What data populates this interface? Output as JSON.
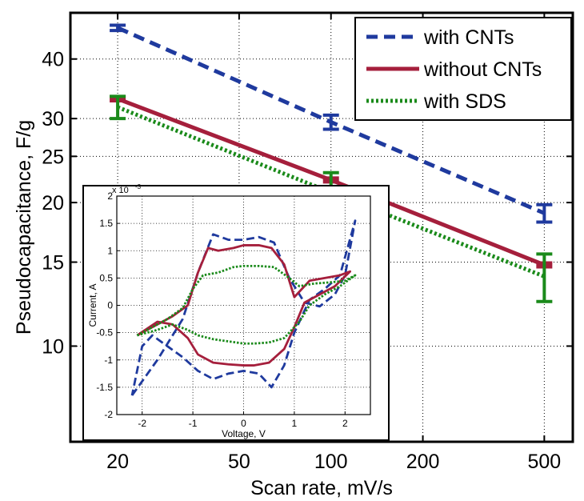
{
  "chart_data": [
    {
      "type": "line",
      "xlabel": "Scan rate, mV/s",
      "ylabel": "Pseudocapacitance, F/g",
      "xscale": "log",
      "yscale": "log",
      "xlim": [
        14,
        620
      ],
      "ylim": [
        6.3,
        50
      ],
      "xticks": [
        20,
        50,
        100,
        200,
        500
      ],
      "yticks": [
        10,
        15,
        20,
        25,
        30,
        40
      ],
      "grid": true,
      "legend_position": "top-right",
      "x": [
        20,
        100,
        500
      ],
      "series": [
        {
          "name": "with CNTs",
          "values": [
            46.5,
            29.5,
            19.0
          ],
          "err": [
            0.6,
            1.0,
            0.8
          ],
          "color": "#1f3a9e",
          "dash": "dashed"
        },
        {
          "name": "without CNTs",
          "values": [
            33.0,
            22.3,
            14.8
          ],
          "err": [
            0,
            0,
            0
          ],
          "color": "#a51f3c",
          "dash": "solid"
        },
        {
          "name": "with SDS",
          "values": [
            31.7,
            21.0,
            14.0
          ],
          "err": [
            1.7,
            2.1,
            1.6
          ],
          "color": "#1a8a1a",
          "dash": "dotted"
        }
      ]
    },
    {
      "type": "line",
      "inset": true,
      "xlabel": "Voltage, V",
      "ylabel": "Current, A",
      "y_multiplier": "x 10",
      "y_exponent": "-3",
      "xlim": [
        -2.5,
        2.5
      ],
      "ylim": [
        -2,
        2
      ],
      "xticks": [
        -2,
        -1,
        0,
        1,
        2
      ],
      "yticks": [
        -2,
        -1.5,
        -1,
        -0.5,
        0,
        0.5,
        1,
        1.5,
        2
      ],
      "grid": true,
      "series": [
        {
          "name": "with CNTs",
          "color": "#1f3a9e",
          "dash": "dashed",
          "x": [
            -2.2,
            -1.7,
            -1.2,
            -0.9,
            -0.6,
            -0.3,
            0.0,
            0.3,
            0.6,
            0.9,
            1.2,
            1.5,
            1.8,
            2.0,
            2.2,
            1.9,
            1.6,
            1.3,
            1.0,
            0.8,
            0.55,
            0.3,
            0.0,
            -0.3,
            -0.6,
            -0.9,
            -1.2,
            -1.5,
            -1.8,
            -2.0,
            -2.2
          ],
          "y": [
            -1.65,
            -1.0,
            -0.25,
            0.6,
            1.3,
            1.2,
            1.2,
            1.25,
            1.15,
            0.5,
            0.05,
            -0.02,
            0.2,
            0.55,
            1.55,
            0.55,
            0.3,
            0.1,
            -0.5,
            -1.1,
            -1.5,
            -1.25,
            -1.2,
            -1.25,
            -1.35,
            -1.2,
            -0.95,
            -0.75,
            -0.55,
            -0.75,
            -1.65
          ]
        },
        {
          "name": "without CNTs",
          "color": "#a51f3c",
          "dash": "solid",
          "x": [
            -2.1,
            -1.8,
            -1.4,
            -1.1,
            -0.9,
            -0.7,
            -0.5,
            -0.2,
            0.0,
            0.3,
            0.55,
            0.8,
            1.0,
            1.3,
            1.6,
            1.9,
            2.1,
            1.8,
            1.5,
            1.2,
            1.0,
            0.8,
            0.5,
            0.2,
            0.0,
            -0.3,
            -0.6,
            -0.9,
            -1.1,
            -1.4,
            -1.7,
            -2.1
          ],
          "y": [
            -0.55,
            -0.4,
            -0.2,
            0.0,
            0.6,
            1.05,
            1.0,
            1.05,
            1.1,
            1.1,
            1.05,
            0.75,
            0.15,
            0.45,
            0.5,
            0.55,
            0.62,
            0.35,
            0.2,
            0.05,
            -0.4,
            -0.8,
            -1.05,
            -1.1,
            -1.1,
            -1.08,
            -1.05,
            -0.9,
            -0.6,
            -0.35,
            -0.3,
            -0.55
          ]
        },
        {
          "name": "with SDS",
          "color": "#1a8a1a",
          "dash": "dotted",
          "x": [
            -2.1,
            -1.8,
            -1.5,
            -1.2,
            -1.0,
            -0.8,
            -0.5,
            -0.2,
            0.0,
            0.3,
            0.6,
            0.9,
            1.1,
            1.4,
            1.7,
            2.0,
            2.2,
            1.9,
            1.6,
            1.3,
            1.1,
            0.8,
            0.5,
            0.2,
            0.0,
            -0.3,
            -0.6,
            -0.9,
            -1.1,
            -1.4,
            -1.7,
            -2.1
          ],
          "y": [
            -0.55,
            -0.4,
            -0.25,
            -0.05,
            0.3,
            0.55,
            0.6,
            0.7,
            0.72,
            0.72,
            0.7,
            0.5,
            0.35,
            0.4,
            0.42,
            0.45,
            0.55,
            0.35,
            0.2,
            0.0,
            -0.3,
            -0.6,
            -0.68,
            -0.7,
            -0.7,
            -0.66,
            -0.62,
            -0.55,
            -0.45,
            -0.35,
            -0.45,
            -0.55
          ]
        }
      ]
    }
  ]
}
